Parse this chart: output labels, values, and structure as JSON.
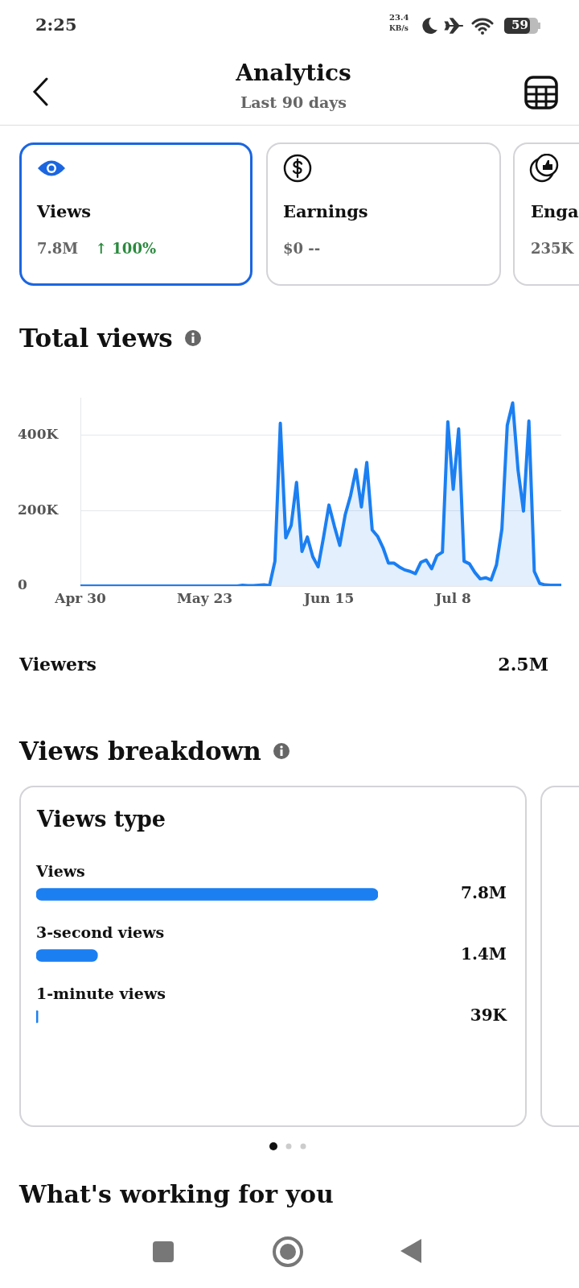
{
  "chart_data": [
    {
      "type": "other",
      "title": "Analytics",
      "subtitle": "Last 90 days",
      "annotations": [
        "2:25",
        "23.4",
        "KB/s",
        "59",
        "Views",
        "7.8M",
        "↑ 100%",
        "Earnings",
        "$0 --",
        "Enga",
        "235K"
      ]
    },
    {
      "type": "area",
      "title": "Total views",
      "color": "#1b7ff2",
      "x": [
        "--04-30",
        "--05-01",
        "--05-02",
        "--05-03",
        "--05-04",
        "--05-05",
        "--05-06",
        "--05-07",
        "--05-08",
        "--05-09",
        "--05-10",
        "--05-11",
        "--05-12",
        "--05-13",
        "--05-14",
        "--05-15",
        "--05-16",
        "--05-17",
        "--05-18",
        "--05-19",
        "--05-20",
        "--05-21",
        "--05-22",
        "--05-23",
        "--05-24",
        "--05-25",
        "--05-26",
        "--05-27",
        "--05-28",
        "--05-29",
        "--05-30",
        "--05-31",
        "--06-01",
        "--06-02",
        "--06-03",
        "--06-04",
        "--06-05",
        "--06-06",
        "--06-07",
        "--06-08",
        "--06-09",
        "--06-10",
        "--06-11",
        "--06-12",
        "--06-13",
        "--06-14",
        "--06-15",
        "--06-16",
        "--06-17",
        "--06-18",
        "--06-19",
        "--06-20",
        "--06-21",
        "--06-22",
        "--06-23",
        "--06-24",
        "--06-25",
        "--06-26",
        "--06-27",
        "--06-28",
        "--06-29",
        "--06-30",
        "--07-01",
        "--07-02",
        "--07-03",
        "--07-04",
        "--07-05",
        "--07-06",
        "--07-07",
        "--07-08",
        "--07-09",
        "--07-10",
        "--07-11",
        "--07-12",
        "--07-13",
        "--07-14",
        "--07-15",
        "--07-16",
        "--07-17",
        "--07-18",
        "--07-19",
        "--07-20",
        "--07-21",
        "--07-22",
        "--07-23",
        "--07-24",
        "--07-25",
        "--07-26",
        "--07-27",
        "--07-28"
      ],
      "values": [
        0,
        0,
        0,
        0,
        0,
        0,
        0,
        0,
        0,
        0,
        0,
        0,
        0,
        0,
        0,
        0,
        0,
        0,
        0,
        0,
        0,
        0,
        0,
        0,
        0,
        0,
        0,
        0,
        0,
        0,
        2000,
        1000,
        1000,
        2000,
        3000,
        1000,
        66000,
        432000,
        128000,
        161000,
        275000,
        92000,
        130000,
        78000,
        51000,
        130000,
        215000,
        159000,
        108000,
        189000,
        240000,
        309000,
        210000,
        328000,
        149000,
        132000,
        102000,
        61000,
        61000,
        51000,
        43000,
        39000,
        33000,
        63000,
        69000,
        46000,
        81000,
        90000,
        436000,
        257000,
        417000,
        66000,
        59000,
        36000,
        19000,
        22000,
        16000,
        56000,
        151000,
        427000,
        486000,
        307000,
        199000,
        438000,
        39000,
        7000,
        3000,
        2000,
        2000,
        2000
      ],
      "xlim": [
        "--04-30",
        "--07-28"
      ],
      "xticks": [
        {
          "value": "--04-30",
          "label": "Apr 30"
        },
        {
          "value": "--05-23",
          "label": "May 23"
        },
        {
          "value": "--06-15",
          "label": "Jun 15"
        },
        {
          "value": "--07-08",
          "label": "Jul 8"
        }
      ],
      "ylim": [
        0,
        500000
      ],
      "yticks": [
        0,
        {
          "value": 200000,
          "label": "200K"
        },
        {
          "value": 400000,
          "label": "400K"
        }
      ],
      "grid": "y",
      "annotations": [
        "Viewers",
        "2.5M"
      ]
    },
    {
      "type": "other",
      "title": "Views breakdown"
    },
    {
      "type": "bar",
      "orientation": "horizontal",
      "title": "Views type",
      "categories": [
        "Views",
        "3-second views",
        "1-minute views"
      ],
      "values": [
        7800000,
        1400000,
        39000
      ],
      "value_labels": [
        "7.8M",
        "1.4M",
        "39K"
      ],
      "color": "#1b7ff2",
      "xlim": [
        0,
        7800000
      ],
      "tick_labels": "y",
      "annotations": [
        "What's working for you"
      ]
    }
  ]
}
